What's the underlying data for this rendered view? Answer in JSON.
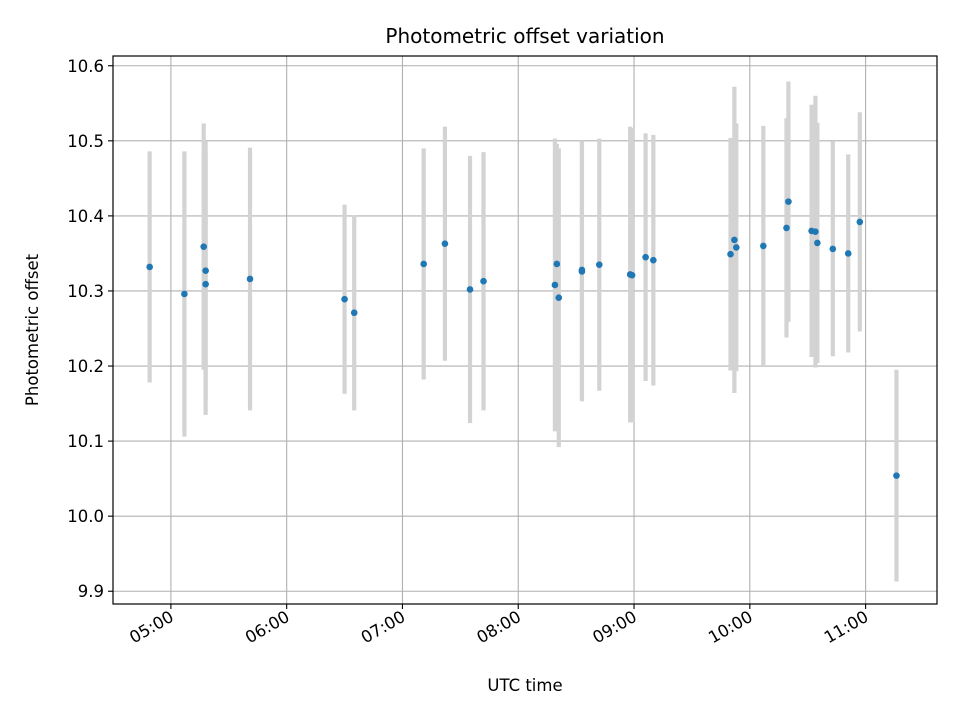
{
  "chart_data": {
    "type": "scatter",
    "title": "Photometric offset variation",
    "xlabel": "UTC time",
    "ylabel": "Photometric offset",
    "grid": true,
    "xlim": [
      "04:30",
      "11:37"
    ],
    "ylim": [
      9.883,
      10.613
    ],
    "x_ticks": [
      "05:00",
      "06:00",
      "07:00",
      "08:00",
      "09:00",
      "10:00",
      "11:00"
    ],
    "y_ticks": [
      "9.9",
      "10.0",
      "10.1",
      "10.2",
      "10.3",
      "10.4",
      "10.5",
      "10.6"
    ],
    "colors": {
      "marker": "#1f77b4",
      "errorbar": "#d3d3d3",
      "grid": "#b0b0b0"
    },
    "points": [
      {
        "t": "04:49",
        "y": 10.332,
        "err": 0.154
      },
      {
        "t": "05:07",
        "y": 10.296,
        "err": 0.19
      },
      {
        "t": "05:17",
        "y": 10.359,
        "err": 0.164
      },
      {
        "t": "05:18",
        "y": 10.309,
        "err": 0.174
      },
      {
        "t": "05:18",
        "y": 10.327,
        "err": 0.172
      },
      {
        "t": "05:41",
        "y": 10.316,
        "err": 0.175
      },
      {
        "t": "06:30",
        "y": 10.289,
        "err": 0.126
      },
      {
        "t": "06:35",
        "y": 10.271,
        "err": 0.13
      },
      {
        "t": "07:11",
        "y": 10.336,
        "err": 0.154
      },
      {
        "t": "07:22",
        "y": 10.363,
        "err": 0.156
      },
      {
        "t": "07:35",
        "y": 10.302,
        "err": 0.178
      },
      {
        "t": "07:42",
        "y": 10.313,
        "err": 0.172
      },
      {
        "t": "08:19",
        "y": 10.308,
        "err": 0.195
      },
      {
        "t": "08:20",
        "y": 10.336,
        "err": 0.16
      },
      {
        "t": "08:21",
        "y": 10.291,
        "err": 0.199
      },
      {
        "t": "08:33",
        "y": 10.326,
        "err": 0.173
      },
      {
        "t": "08:33",
        "y": 10.328,
        "err": 0.172
      },
      {
        "t": "08:42",
        "y": 10.335,
        "err": 0.168
      },
      {
        "t": "08:58",
        "y": 10.322,
        "err": 0.197
      },
      {
        "t": "08:59",
        "y": 10.321,
        "err": 0.196
      },
      {
        "t": "09:06",
        "y": 10.345,
        "err": 0.165
      },
      {
        "t": "09:10",
        "y": 10.341,
        "err": 0.167
      },
      {
        "t": "09:50",
        "y": 10.349,
        "err": 0.155
      },
      {
        "t": "09:52",
        "y": 10.368,
        "err": 0.204
      },
      {
        "t": "09:53",
        "y": 10.358,
        "err": 0.165
      },
      {
        "t": "10:07",
        "y": 10.36,
        "err": 0.16
      },
      {
        "t": "10:19",
        "y": 10.384,
        "err": 0.146
      },
      {
        "t": "10:20",
        "y": 10.419,
        "err": 0.16
      },
      {
        "t": "10:32",
        "y": 10.38,
        "err": 0.168
      },
      {
        "t": "10:34",
        "y": 10.379,
        "err": 0.181
      },
      {
        "t": "10:35",
        "y": 10.364,
        "err": 0.16
      },
      {
        "t": "10:43",
        "y": 10.356,
        "err": 0.143
      },
      {
        "t": "10:51",
        "y": 10.35,
        "err": 0.132
      },
      {
        "t": "10:57",
        "y": 10.392,
        "err": 0.146
      },
      {
        "t": "11:16",
        "y": 10.054,
        "err": 0.141
      }
    ]
  }
}
